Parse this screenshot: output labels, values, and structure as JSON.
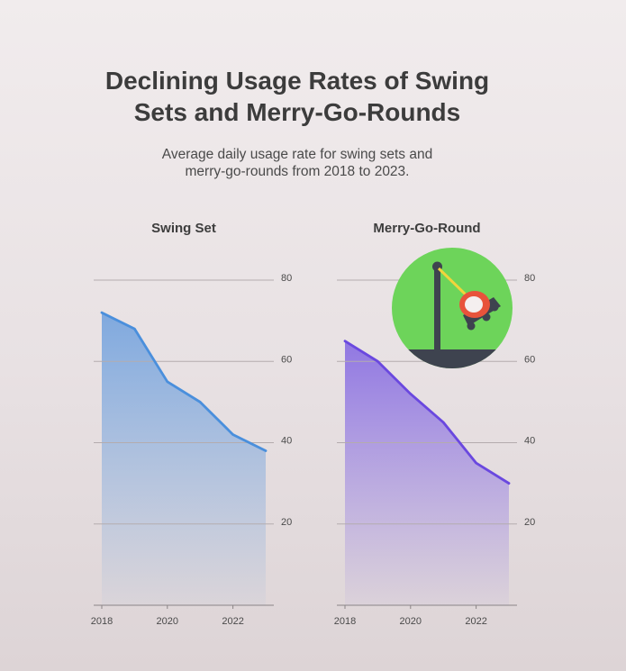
{
  "title": "Declining Usage Rates of Swing Sets and Merry-Go-Rounds",
  "subtitle": "Average daily usage rate for swing sets and merry-go-rounds from 2018 to 2023.",
  "colors": {
    "swing_line": "#4a8fdc",
    "swing_fill": "#7aa6de",
    "merry_line": "#6a48df",
    "merry_fill": "#8c72e2",
    "grid": "#b4acae",
    "tick_text": "#4a4a4a",
    "icon_bg": "#6dd45a",
    "icon_ground": "#3e434f",
    "icon_seat": "#e8533b",
    "icon_rope": "#f1d43c"
  },
  "chart_data": [
    {
      "type": "area",
      "title": "Swing Set",
      "x": [
        2018,
        2019,
        2020,
        2021,
        2022,
        2023
      ],
      "series": [
        {
          "values": [
            72,
            68,
            55,
            50,
            42,
            38
          ]
        }
      ],
      "xticks": [
        "2018",
        "2020",
        "2022"
      ],
      "yticks": [
        "20",
        "40",
        "60",
        "80"
      ],
      "ylim": [
        0,
        80
      ],
      "grid": true
    },
    {
      "type": "area",
      "title": "Merry-Go-Round",
      "x": [
        2018,
        2019,
        2020,
        2021,
        2022,
        2023
      ],
      "series": [
        {
          "values": [
            65,
            60,
            52,
            45,
            35,
            30
          ]
        }
      ],
      "xticks": [
        "2018",
        "2020",
        "2022"
      ],
      "yticks": [
        "20",
        "40",
        "60",
        "80"
      ],
      "ylim": [
        0,
        80
      ],
      "grid": true
    }
  ],
  "icon": "swing-icon"
}
